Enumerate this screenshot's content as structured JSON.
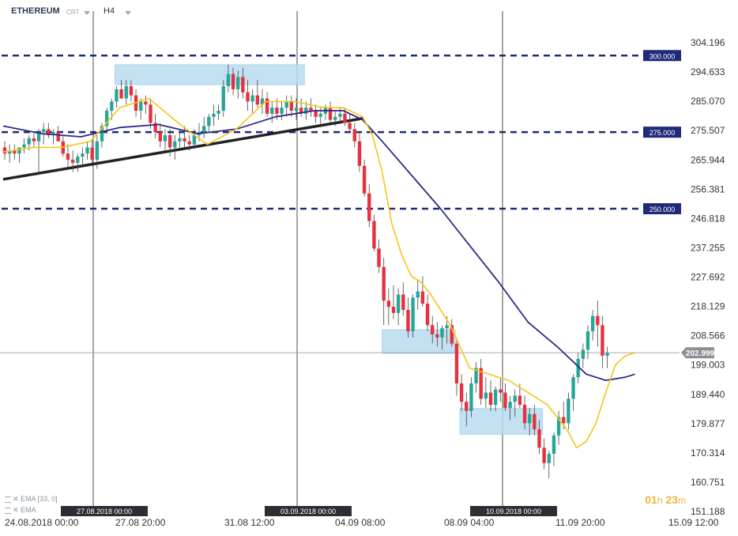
{
  "header": {
    "symbol": "ETHEREUM",
    "chart_type": "CRT",
    "timeframe": "H4"
  },
  "indicators": [
    {
      "label": "EMA",
      "params": "[33, 0]"
    },
    {
      "label": "EMA",
      "params": ""
    }
  ],
  "timer": {
    "hours": "01",
    "h": "h",
    "minutes": "23",
    "m": "m"
  },
  "colors": {
    "bull": "#26a69a",
    "bear": "#e8313f",
    "ema_fast": "#f5c518",
    "ema_slow": "#2e2a86",
    "level_line": "#1f2a78",
    "zone": "#b9dcf2",
    "trendline": "#222222",
    "price_tag": "#8a8f94"
  },
  "chart_data": {
    "type": "candlestick",
    "ylim": [
      151.188,
      304.196
    ],
    "y_ticks": [
      "304.196",
      "294.633",
      "285.070",
      "275.507",
      "265.944",
      "256.381",
      "246.818",
      "237.255",
      "227.692",
      "218.129",
      "208.566",
      "199.003",
      "189.440",
      "179.877",
      "170.314",
      "160.751",
      "151.188"
    ],
    "x_ticks": [
      "24.08.2018  00:00",
      "27.08  20:00",
      "31.08  12:00",
      "04.09  08:00",
      "08.09  04:00",
      "11.09  20:00",
      "15.09  12:00"
    ],
    "vertical_markers": [
      "27.08.2018 00:00",
      "03.09.2018 00:00",
      "10.09.2018 00:00"
    ],
    "horizontal_levels": [
      300.0,
      275.0,
      250.0
    ],
    "horizontal_level_labels": [
      "300.000",
      "275.000",
      "250.000"
    ],
    "current_price": 202.999,
    "current_price_label": "202.999",
    "zones": [
      {
        "i0": 23,
        "i1": 62,
        "top": 297.0,
        "bottom": 290.5
      },
      {
        "i0": 78,
        "i1": 93,
        "top": 210.5,
        "bottom": 202.8
      },
      {
        "i0": 94,
        "i1": 111,
        "top": 184.8,
        "bottom": 176.4
      }
    ],
    "trendline": {
      "i0": 0,
      "v0": 259.6,
      "i1": 74,
      "v1": 279.5
    },
    "ema_slow": [
      [
        0,
        277
      ],
      [
        8,
        274.5
      ],
      [
        16,
        273.5
      ],
      [
        24,
        276.5
      ],
      [
        32,
        277.5
      ],
      [
        40,
        274.5
      ],
      [
        48,
        276
      ],
      [
        56,
        280
      ],
      [
        64,
        282
      ],
      [
        70,
        282
      ],
      [
        74,
        279
      ],
      [
        78,
        272
      ],
      [
        84,
        261
      ],
      [
        90,
        250
      ],
      [
        96,
        238
      ],
      [
        102,
        226
      ],
      [
        108,
        213
      ],
      [
        114,
        205
      ],
      [
        120,
        196
      ],
      [
        124,
        194
      ],
      [
        128,
        195
      ],
      [
        130,
        196
      ]
    ],
    "ema_fast": [
      [
        0,
        268.5
      ],
      [
        6,
        270
      ],
      [
        12,
        270
      ],
      [
        18,
        272
      ],
      [
        24,
        283
      ],
      [
        30,
        286
      ],
      [
        36,
        278
      ],
      [
        42,
        271
      ],
      [
        48,
        276
      ],
      [
        54,
        285
      ],
      [
        60,
        285
      ],
      [
        66,
        283
      ],
      [
        70,
        283
      ],
      [
        74,
        280
      ],
      [
        76,
        274
      ],
      [
        78,
        262
      ],
      [
        80,
        245
      ],
      [
        82,
        235
      ],
      [
        84,
        228
      ],
      [
        86,
        226
      ],
      [
        88,
        222
      ],
      [
        90,
        217
      ],
      [
        92,
        212
      ],
      [
        94,
        205
      ],
      [
        96,
        198
      ],
      [
        100,
        196
      ],
      [
        104,
        194
      ],
      [
        108,
        190
      ],
      [
        112,
        186
      ],
      [
        116,
        178
      ],
      [
        118,
        172
      ],
      [
        120,
        174
      ],
      [
        122,
        180
      ],
      [
        124,
        190
      ],
      [
        126,
        199
      ],
      [
        128,
        202
      ],
      [
        130,
        203
      ]
    ],
    "ohlc": [
      [
        270,
        272,
        266,
        268
      ],
      [
        268,
        271,
        265,
        269
      ],
      [
        269,
        271,
        266,
        268
      ],
      [
        268,
        270,
        265,
        270
      ],
      [
        270,
        273,
        268,
        271
      ],
      [
        271,
        274,
        269,
        273
      ],
      [
        273,
        275,
        270,
        272
      ],
      [
        272,
        276,
        261,
        275
      ],
      [
        275,
        278,
        271,
        276
      ],
      [
        276,
        278,
        273,
        274
      ],
      [
        274,
        276,
        271,
        275
      ],
      [
        275,
        277,
        272,
        272
      ],
      [
        272,
        274,
        267,
        268
      ],
      [
        268,
        271,
        263,
        266
      ],
      [
        266,
        269,
        262,
        265
      ],
      [
        265,
        268,
        262,
        267
      ],
      [
        267,
        270,
        264,
        268
      ],
      [
        268,
        272,
        266,
        270
      ],
      [
        270,
        273,
        265,
        266
      ],
      [
        266,
        274,
        263,
        272
      ],
      [
        272,
        278,
        270,
        277
      ],
      [
        277,
        283,
        275,
        282
      ],
      [
        282,
        286,
        279,
        285
      ],
      [
        285,
        290,
        283,
        289
      ],
      [
        289,
        292,
        286,
        286
      ],
      [
        286,
        292,
        284,
        290
      ],
      [
        290,
        292,
        285,
        287
      ],
      [
        287,
        289,
        280,
        282
      ],
      [
        282,
        286,
        279,
        285
      ],
      [
        285,
        287,
        281,
        284
      ],
      [
        284,
        286,
        276,
        278
      ],
      [
        278,
        281,
        273,
        275
      ],
      [
        275,
        278,
        270,
        272
      ],
      [
        272,
        276,
        269,
        274
      ],
      [
        274,
        276,
        267,
        270
      ],
      [
        270,
        274,
        266,
        272
      ],
      [
        272,
        276,
        270,
        273
      ],
      [
        273,
        277,
        270,
        272
      ],
      [
        272,
        274,
        269,
        271
      ],
      [
        271,
        276,
        270,
        274
      ],
      [
        274,
        278,
        272,
        275
      ],
      [
        275,
        280,
        273,
        277
      ],
      [
        277,
        281,
        275,
        280
      ],
      [
        280,
        284,
        277,
        281
      ],
      [
        281,
        284,
        279,
        282
      ],
      [
        282,
        292,
        280,
        290
      ],
      [
        290,
        297,
        288,
        294
      ],
      [
        294,
        296,
        287,
        289
      ],
      [
        289,
        295,
        286,
        293
      ],
      [
        293,
        296,
        286,
        288
      ],
      [
        288,
        292,
        282,
        285
      ],
      [
        285,
        289,
        281,
        287
      ],
      [
        287,
        292,
        283,
        284
      ],
      [
        284,
        289,
        281,
        286
      ],
      [
        286,
        288,
        280,
        281
      ],
      [
        281,
        285,
        278,
        283
      ],
      [
        283,
        286,
        279,
        281
      ],
      [
        281,
        285,
        279,
        283
      ],
      [
        283,
        287,
        280,
        285
      ],
      [
        285,
        287,
        280,
        282
      ],
      [
        282,
        286,
        279,
        283
      ],
      [
        283,
        286,
        280,
        281
      ],
      [
        281,
        285,
        279,
        283
      ],
      [
        283,
        286,
        280,
        282
      ],
      [
        282,
        284,
        278,
        280
      ],
      [
        280,
        283,
        277,
        281
      ],
      [
        281,
        284,
        279,
        283
      ],
      [
        283,
        285,
        278,
        279
      ],
      [
        279,
        282,
        277,
        280
      ],
      [
        280,
        283,
        278,
        281
      ],
      [
        281,
        283,
        277,
        278
      ],
      [
        278,
        281,
        275,
        276
      ],
      [
        276,
        278,
        270,
        272
      ],
      [
        272,
        275,
        262,
        264
      ],
      [
        264,
        266,
        254,
        255
      ],
      [
        255,
        258,
        244,
        246
      ],
      [
        246,
        248,
        236,
        237
      ],
      [
        237,
        240,
        229,
        231
      ],
      [
        231,
        234,
        212,
        220
      ],
      [
        220,
        224,
        212,
        218
      ],
      [
        218,
        225,
        214,
        216
      ],
      [
        216,
        224,
        212,
        222
      ],
      [
        222,
        226,
        215,
        217
      ],
      [
        217,
        221,
        208,
        210
      ],
      [
        210,
        222,
        208,
        221
      ],
      [
        221,
        227,
        217,
        223
      ],
      [
        223,
        228,
        218,
        219
      ],
      [
        219,
        222,
        210,
        212
      ],
      [
        212,
        215,
        206,
        209
      ],
      [
        209,
        213,
        205,
        208
      ],
      [
        208,
        212,
        204,
        211
      ],
      [
        211,
        215,
        206,
        212
      ],
      [
        212,
        214,
        205,
        206
      ],
      [
        206,
        208,
        189,
        193
      ],
      [
        193,
        196,
        184,
        187
      ],
      [
        187,
        190,
        179,
        184
      ],
      [
        184,
        195,
        182,
        193
      ],
      [
        193,
        200,
        190,
        198
      ],
      [
        198,
        201,
        186,
        188
      ],
      [
        188,
        195,
        185,
        190
      ],
      [
        190,
        194,
        184,
        186
      ],
      [
        186,
        192,
        184,
        191
      ],
      [
        191,
        195,
        187,
        190
      ],
      [
        190,
        193,
        184,
        185
      ],
      [
        185,
        189,
        181,
        187
      ],
      [
        187,
        191,
        182,
        189
      ],
      [
        189,
        193,
        185,
        186
      ],
      [
        186,
        189,
        178,
        180
      ],
      [
        180,
        185,
        176,
        183
      ],
      [
        183,
        186,
        176,
        178
      ],
      [
        178,
        181,
        170,
        172
      ],
      [
        172,
        175,
        165,
        167
      ],
      [
        167,
        171,
        162,
        170
      ],
      [
        170,
        177,
        166,
        176
      ],
      [
        176,
        184,
        173,
        182
      ],
      [
        182,
        187,
        178,
        180
      ],
      [
        180,
        190,
        178,
        188
      ],
      [
        188,
        196,
        184,
        195
      ],
      [
        195,
        203,
        193,
        201
      ],
      [
        201,
        206,
        198,
        204
      ],
      [
        204,
        212,
        201,
        210
      ],
      [
        210,
        217,
        207,
        215
      ],
      [
        215,
        220,
        205,
        212
      ],
      [
        212,
        215,
        198,
        202
      ],
      [
        202,
        205,
        198,
        203
      ]
    ]
  }
}
